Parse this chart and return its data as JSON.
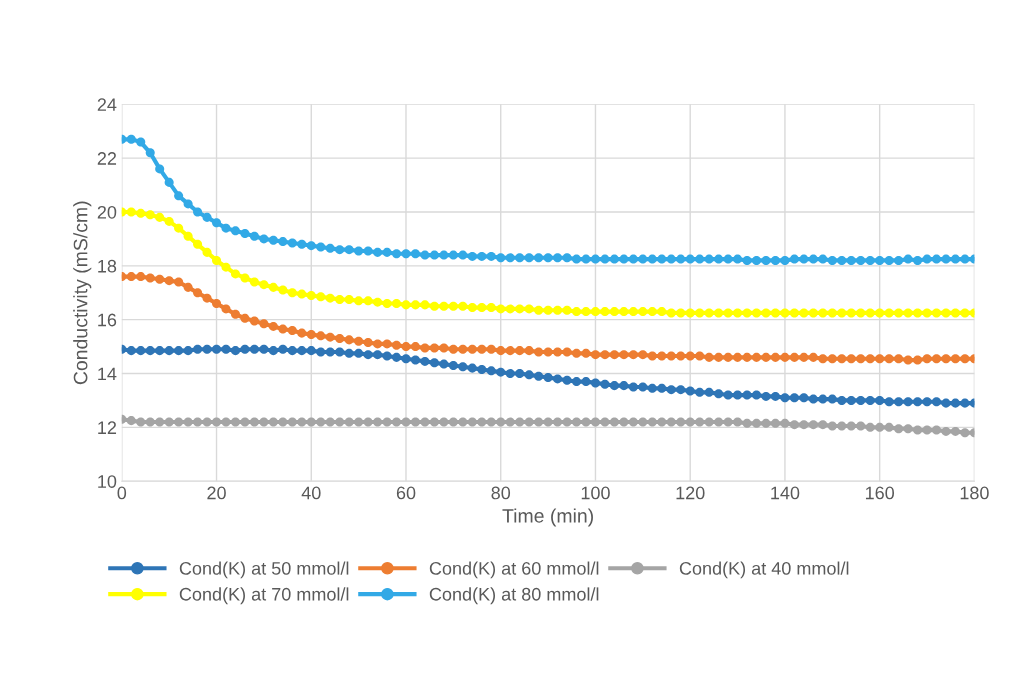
{
  "chart_data": {
    "type": "line",
    "xlabel": "Time (min)",
    "ylabel": "Conductivity (mS/cm)",
    "x": [
      0,
      2,
      4,
      6,
      8,
      10,
      12,
      14,
      16,
      18,
      20,
      22,
      24,
      26,
      28,
      30,
      32,
      34,
      36,
      38,
      40,
      42,
      44,
      46,
      48,
      50,
      52,
      54,
      56,
      58,
      60,
      62,
      64,
      66,
      68,
      70,
      72,
      74,
      76,
      78,
      80,
      82,
      84,
      86,
      88,
      90,
      92,
      94,
      96,
      98,
      100,
      102,
      104,
      106,
      108,
      110,
      112,
      114,
      116,
      118,
      120,
      122,
      124,
      126,
      128,
      130,
      132,
      134,
      136,
      138,
      140,
      142,
      144,
      146,
      148,
      150,
      152,
      154,
      156,
      158,
      160,
      162,
      164,
      166,
      168,
      170,
      172,
      174,
      176,
      178,
      180
    ],
    "xlim": [
      0,
      180
    ],
    "xticks": [
      0,
      20,
      40,
      60,
      80,
      100,
      120,
      140,
      160,
      180
    ],
    "ylim": [
      10,
      24
    ],
    "yticks": [
      10,
      12,
      14,
      16,
      18,
      20,
      22,
      24
    ],
    "grid": true,
    "legend": "bottom",
    "marker": "circle",
    "line_style": "solid",
    "series": [
      {
        "name": "Cond(K) at 50 mmol/l",
        "color": "#2e75b6",
        "values": [
          14.9,
          14.85,
          14.85,
          14.85,
          14.85,
          14.85,
          14.85,
          14.85,
          14.9,
          14.9,
          14.9,
          14.9,
          14.85,
          14.9,
          14.9,
          14.9,
          14.85,
          14.9,
          14.85,
          14.85,
          14.85,
          14.8,
          14.8,
          14.8,
          14.75,
          14.75,
          14.7,
          14.7,
          14.65,
          14.6,
          14.55,
          14.5,
          14.45,
          14.4,
          14.35,
          14.3,
          14.25,
          14.2,
          14.15,
          14.1,
          14.05,
          14.0,
          14.0,
          13.95,
          13.9,
          13.85,
          13.8,
          13.75,
          13.7,
          13.7,
          13.65,
          13.6,
          13.55,
          13.55,
          13.5,
          13.5,
          13.45,
          13.45,
          13.4,
          13.4,
          13.35,
          13.3,
          13.3,
          13.25,
          13.2,
          13.2,
          13.2,
          13.2,
          13.15,
          13.15,
          13.1,
          13.1,
          13.1,
          13.05,
          13.05,
          13.05,
          13.0,
          13.0,
          13.0,
          13.0,
          13.0,
          12.95,
          12.95,
          12.95,
          12.95,
          12.95,
          12.95,
          12.9,
          12.9,
          12.9,
          12.9
        ]
      },
      {
        "name": "Cond(K) at 60 mmol/l",
        "color": "#ed7d31",
        "values": [
          17.6,
          17.6,
          17.6,
          17.55,
          17.5,
          17.45,
          17.4,
          17.2,
          17.0,
          16.8,
          16.6,
          16.4,
          16.2,
          16.05,
          15.95,
          15.85,
          15.75,
          15.65,
          15.6,
          15.5,
          15.45,
          15.4,
          15.35,
          15.3,
          15.25,
          15.2,
          15.15,
          15.1,
          15.1,
          15.05,
          15.0,
          15.0,
          14.95,
          14.95,
          14.95,
          14.9,
          14.9,
          14.9,
          14.9,
          14.9,
          14.85,
          14.85,
          14.85,
          14.85,
          14.8,
          14.8,
          14.8,
          14.8,
          14.75,
          14.75,
          14.7,
          14.7,
          14.7,
          14.7,
          14.7,
          14.7,
          14.65,
          14.65,
          14.65,
          14.65,
          14.65,
          14.65,
          14.6,
          14.6,
          14.6,
          14.6,
          14.6,
          14.6,
          14.6,
          14.6,
          14.6,
          14.6,
          14.6,
          14.6,
          14.55,
          14.55,
          14.55,
          14.55,
          14.55,
          14.55,
          14.55,
          14.55,
          14.55,
          14.5,
          14.5,
          14.55,
          14.55,
          14.55,
          14.55,
          14.55,
          14.55
        ]
      },
      {
        "name": "Cond(K) at 40 mmol/l",
        "color": "#a5a5a5",
        "values": [
          12.3,
          12.25,
          12.2,
          12.2,
          12.2,
          12.2,
          12.2,
          12.2,
          12.2,
          12.2,
          12.2,
          12.2,
          12.2,
          12.2,
          12.2,
          12.2,
          12.2,
          12.2,
          12.2,
          12.2,
          12.2,
          12.2,
          12.2,
          12.2,
          12.2,
          12.2,
          12.2,
          12.2,
          12.2,
          12.2,
          12.2,
          12.2,
          12.2,
          12.2,
          12.2,
          12.2,
          12.2,
          12.2,
          12.2,
          12.2,
          12.2,
          12.2,
          12.2,
          12.2,
          12.2,
          12.2,
          12.2,
          12.2,
          12.2,
          12.2,
          12.2,
          12.2,
          12.2,
          12.2,
          12.2,
          12.2,
          12.2,
          12.2,
          12.2,
          12.2,
          12.2,
          12.2,
          12.2,
          12.2,
          12.2,
          12.2,
          12.15,
          12.15,
          12.15,
          12.15,
          12.15,
          12.1,
          12.1,
          12.1,
          12.1,
          12.05,
          12.05,
          12.05,
          12.05,
          12.0,
          12.0,
          12.0,
          11.95,
          11.95,
          11.9,
          11.9,
          11.9,
          11.85,
          11.85,
          11.8,
          11.8
        ]
      },
      {
        "name": "Cond(K) at 70 mmol/l",
        "color": "#ffff00",
        "values": [
          20.0,
          20.0,
          19.95,
          19.9,
          19.8,
          19.65,
          19.4,
          19.1,
          18.8,
          18.5,
          18.2,
          17.95,
          17.7,
          17.55,
          17.4,
          17.3,
          17.2,
          17.1,
          17.0,
          16.95,
          16.9,
          16.85,
          16.8,
          16.75,
          16.75,
          16.7,
          16.7,
          16.65,
          16.6,
          16.6,
          16.55,
          16.55,
          16.55,
          16.5,
          16.5,
          16.5,
          16.5,
          16.45,
          16.45,
          16.45,
          16.4,
          16.4,
          16.4,
          16.4,
          16.35,
          16.35,
          16.35,
          16.35,
          16.3,
          16.3,
          16.3,
          16.3,
          16.3,
          16.3,
          16.3,
          16.3,
          16.3,
          16.3,
          16.25,
          16.25,
          16.25,
          16.25,
          16.25,
          16.25,
          16.25,
          16.25,
          16.25,
          16.25,
          16.25,
          16.25,
          16.25,
          16.25,
          16.25,
          16.25,
          16.25,
          16.25,
          16.25,
          16.25,
          16.25,
          16.25,
          16.25,
          16.25,
          16.25,
          16.25,
          16.25,
          16.25,
          16.25,
          16.25,
          16.25,
          16.25,
          16.25
        ]
      },
      {
        "name": "Cond(K) at 80 mmol/l",
        "color": "#32a9e6",
        "values": [
          22.7,
          22.7,
          22.6,
          22.2,
          21.6,
          21.1,
          20.6,
          20.3,
          20.0,
          19.8,
          19.6,
          19.4,
          19.3,
          19.2,
          19.1,
          19.0,
          18.95,
          18.9,
          18.85,
          18.8,
          18.75,
          18.7,
          18.65,
          18.6,
          18.6,
          18.55,
          18.55,
          18.5,
          18.5,
          18.45,
          18.45,
          18.45,
          18.4,
          18.4,
          18.4,
          18.4,
          18.4,
          18.35,
          18.35,
          18.35,
          18.3,
          18.3,
          18.3,
          18.3,
          18.3,
          18.3,
          18.3,
          18.3,
          18.25,
          18.25,
          18.25,
          18.25,
          18.25,
          18.25,
          18.25,
          18.25,
          18.25,
          18.25,
          18.25,
          18.25,
          18.25,
          18.25,
          18.25,
          18.25,
          18.25,
          18.25,
          18.2,
          18.2,
          18.2,
          18.2,
          18.2,
          18.25,
          18.25,
          18.25,
          18.25,
          18.2,
          18.2,
          18.2,
          18.2,
          18.2,
          18.2,
          18.2,
          18.2,
          18.25,
          18.2,
          18.25,
          18.25,
          18.25,
          18.25,
          18.25,
          18.25
        ]
      }
    ]
  }
}
